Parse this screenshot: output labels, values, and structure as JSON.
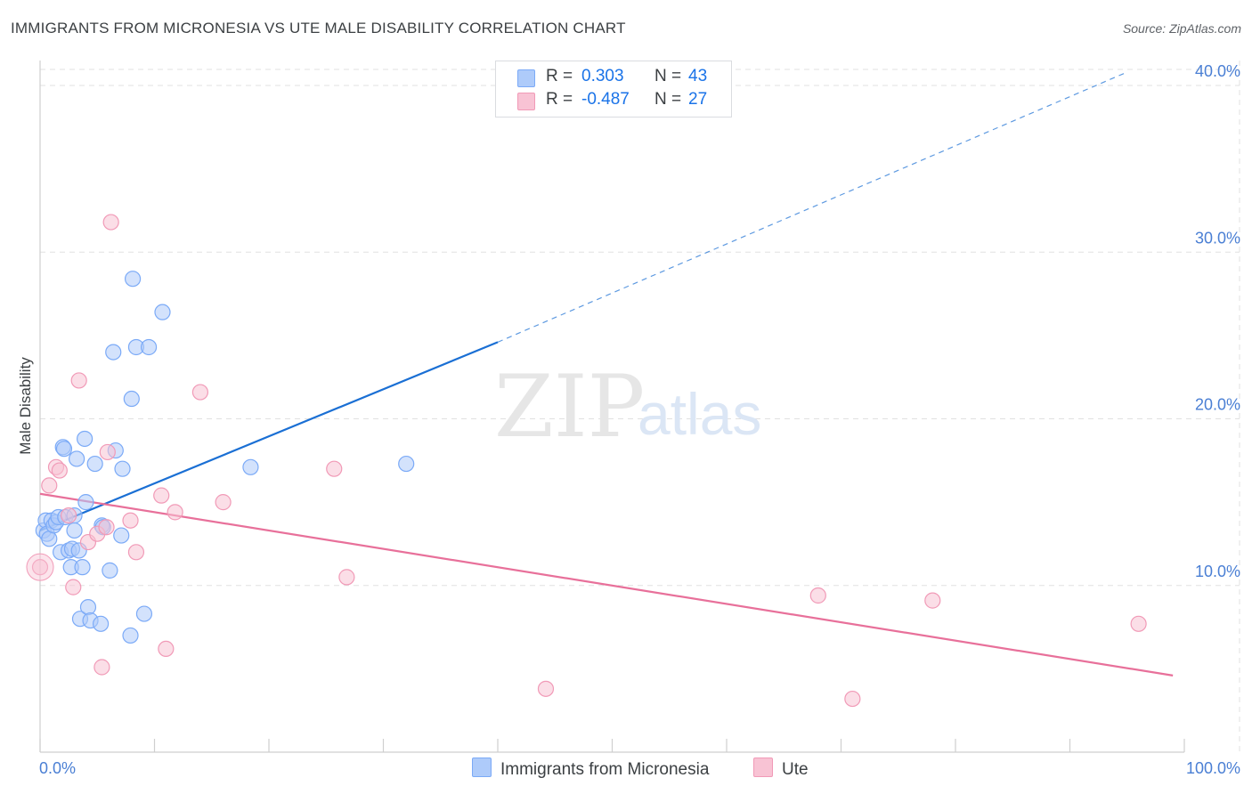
{
  "title": "IMMIGRANTS FROM MICRONESIA VS UTE MALE DISABILITY CORRELATION CHART",
  "source": "Source: ZipAtlas.com",
  "watermark": {
    "zip": "ZIP",
    "atlas": "atlas"
  },
  "legend": {
    "rows": [
      {
        "r_label": "R =",
        "r_value": "0.303",
        "n_label": "N =",
        "n_value": "43"
      },
      {
        "r_label": "R =",
        "r_value": "-0.487",
        "n_label": "N =",
        "n_value": "27"
      }
    ]
  },
  "colors": {
    "blue_fill": "#aecbfa",
    "blue_stroke": "#7baaf7",
    "blue_line": "#1a6fd4",
    "pink_fill": "#f8c3d4",
    "pink_stroke": "#f19ab7",
    "pink_line": "#e8709a",
    "grid": "#e0e0e0",
    "tick_text": "#4a7fd4"
  },
  "chart_data": {
    "type": "scatter",
    "title": "IMMIGRANTS FROM MICRONESIA VS UTE MALE DISABILITY CORRELATION CHART",
    "xlabel": "",
    "ylabel": "Male Disability",
    "xlim": [
      0,
      100
    ],
    "ylim": [
      0,
      40
    ],
    "x_tick_labels": [
      "0.0%",
      "100.0%"
    ],
    "y_ticks": [
      10,
      20,
      30,
      40
    ],
    "y_tick_labels": [
      "10.0%",
      "20.0%",
      "30.0%",
      "40.0%"
    ],
    "series": [
      {
        "name": "Immigrants from Micronesia",
        "R": 0.303,
        "N": 43,
        "trend": {
          "x0": 0,
          "y0": 13.3,
          "x1": 40,
          "y1": 24.6,
          "dash_to_x": 95,
          "dash_to_y": 40.8
        },
        "points": [
          [
            0.3,
            13.3
          ],
          [
            0.5,
            13.9
          ],
          [
            0.6,
            13.1
          ],
          [
            0.8,
            12.8
          ],
          [
            1.0,
            13.9
          ],
          [
            1.2,
            13.6
          ],
          [
            1.4,
            13.8
          ],
          [
            1.6,
            14.1
          ],
          [
            1.8,
            12.0
          ],
          [
            2.0,
            18.3
          ],
          [
            2.1,
            18.2
          ],
          [
            2.2,
            14.1
          ],
          [
            2.5,
            12.1
          ],
          [
            2.7,
            11.1
          ],
          [
            2.8,
            12.2
          ],
          [
            3.0,
            14.2
          ],
          [
            3.0,
            13.3
          ],
          [
            3.2,
            17.6
          ],
          [
            3.4,
            12.1
          ],
          [
            3.5,
            8.0
          ],
          [
            3.7,
            11.1
          ],
          [
            3.9,
            18.8
          ],
          [
            4.0,
            15.0
          ],
          [
            4.2,
            8.7
          ],
          [
            4.4,
            7.9
          ],
          [
            4.8,
            17.3
          ],
          [
            5.3,
            7.7
          ],
          [
            5.4,
            13.6
          ],
          [
            5.5,
            13.5
          ],
          [
            6.1,
            10.9
          ],
          [
            6.4,
            24.0
          ],
          [
            6.6,
            18.1
          ],
          [
            7.1,
            13.0
          ],
          [
            7.2,
            17.0
          ],
          [
            7.9,
            7.0
          ],
          [
            8.0,
            21.2
          ],
          [
            8.1,
            28.4
          ],
          [
            8.4,
            24.3
          ],
          [
            9.1,
            8.3
          ],
          [
            9.5,
            24.3
          ],
          [
            10.7,
            26.4
          ],
          [
            18.4,
            17.1
          ],
          [
            32.0,
            17.3
          ]
        ]
      },
      {
        "name": "Ute",
        "R": -0.487,
        "N": 27,
        "trend": {
          "x0": 0,
          "y0": 15.5,
          "x1": 99,
          "y1": 4.6
        },
        "points": [
          [
            0.0,
            11.1
          ],
          [
            0.8,
            16.0
          ],
          [
            1.4,
            17.1
          ],
          [
            1.7,
            16.9
          ],
          [
            2.5,
            14.2
          ],
          [
            2.9,
            9.9
          ],
          [
            3.4,
            22.3
          ],
          [
            4.2,
            12.6
          ],
          [
            5.0,
            13.1
          ],
          [
            5.4,
            5.1
          ],
          [
            5.8,
            13.5
          ],
          [
            5.9,
            18.0
          ],
          [
            6.2,
            31.8
          ],
          [
            7.9,
            13.9
          ],
          [
            8.4,
            12.0
          ],
          [
            10.6,
            15.4
          ],
          [
            11.0,
            6.2
          ],
          [
            11.8,
            14.4
          ],
          [
            14.0,
            21.6
          ],
          [
            16.0,
            15.0
          ],
          [
            25.7,
            17.0
          ],
          [
            26.8,
            10.5
          ],
          [
            44.2,
            3.8
          ],
          [
            68.0,
            9.4
          ],
          [
            71.0,
            3.2
          ],
          [
            78.0,
            9.1
          ],
          [
            96.0,
            7.7
          ]
        ]
      }
    ]
  }
}
